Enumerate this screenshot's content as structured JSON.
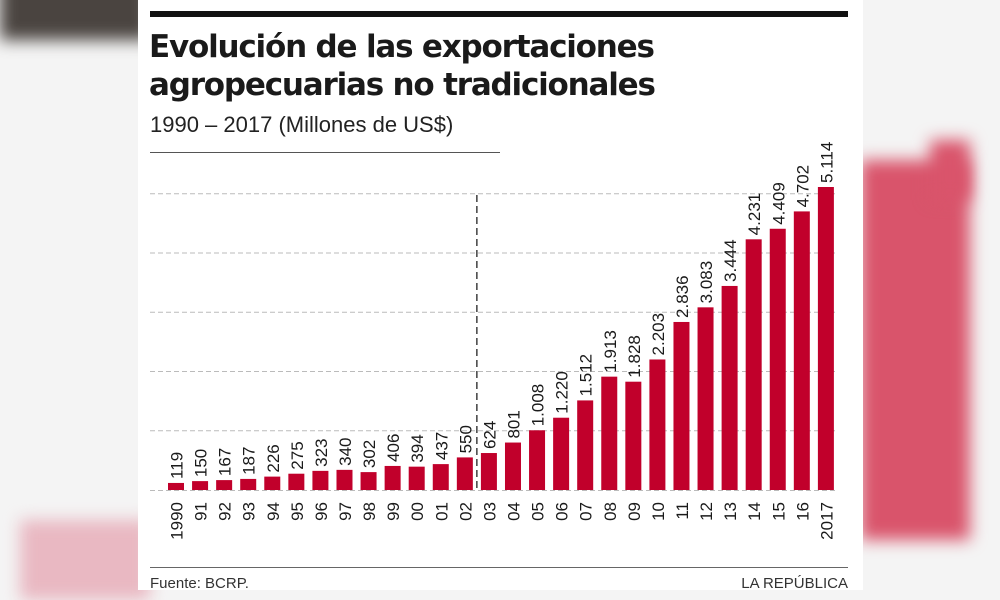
{
  "title": "Evolución de las exportaciones agropecuarias no tradicionales",
  "subtitle": "1990 – 2017 (Millones de US$)",
  "source": "Fuente: BCRP.",
  "brand": "LA REPÚBLICA",
  "colors": {
    "bar": "#c1002b",
    "text": "#1a1a1a",
    "grid": "#bbbbbb"
  },
  "chart_data": {
    "type": "bar",
    "title": "Evolución de las exportaciones agropecuarias no tradicionales",
    "subtitle": "1990 – 2017 (Millones de US$)",
    "categories": [
      "1990",
      "91",
      "92",
      "93",
      "94",
      "95",
      "96",
      "97",
      "98",
      "99",
      "00",
      "01",
      "02",
      "03",
      "04",
      "05",
      "06",
      "07",
      "08",
      "09",
      "10",
      "11",
      "12",
      "13",
      "14",
      "15",
      "16",
      "2017"
    ],
    "values": [
      119,
      150,
      167,
      187,
      226,
      275,
      323,
      340,
      302,
      406,
      394,
      437,
      550,
      624,
      801,
      1008,
      1220,
      1512,
      1913,
      1828,
      2203,
      2836,
      3083,
      3444,
      4231,
      4409,
      4702,
      5114
    ],
    "value_labels": [
      "119",
      "150",
      "167",
      "187",
      "226",
      "275",
      "323",
      "340",
      "302",
      "406",
      "394",
      "437",
      "550",
      "624",
      "801",
      "1.008",
      "1.220",
      "1.512",
      "1.913",
      "1.828",
      "2.203",
      "2.836",
      "3.083",
      "3.444",
      "4.231",
      "4.409",
      "4.702",
      "5.114"
    ],
    "ylim": [
      0,
      5114
    ],
    "gridlines": [
      1000,
      2000,
      3000,
      4000,
      5000
    ],
    "grid": true,
    "y_axis_labels_shown": false,
    "divider_between": [
      "02",
      "03"
    ],
    "divider_style": "dashed"
  }
}
